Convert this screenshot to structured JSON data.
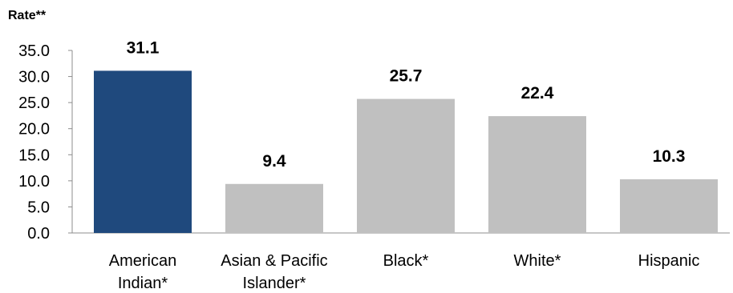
{
  "chart_data": {
    "type": "bar",
    "ylabel": "Rate**",
    "xlabel": "",
    "ylim": [
      0,
      35
    ],
    "yticks": [
      "0.0",
      "5.0",
      "10.0",
      "15.0",
      "20.0",
      "25.0",
      "30.0",
      "35.0"
    ],
    "categories": [
      [
        "American",
        "Indian*"
      ],
      [
        "Asian & Pacific",
        "Islander*"
      ],
      [
        "Black*"
      ],
      [
        "White*"
      ],
      [
        "Hispanic"
      ]
    ],
    "values": [
      31.1,
      9.4,
      25.7,
      22.4,
      10.3
    ],
    "data_labels": [
      "31.1",
      "9.4",
      "25.7",
      "22.4",
      "10.3"
    ],
    "bar_colors": [
      "#1f497d",
      "#c0c0c0",
      "#c0c0c0",
      "#c0c0c0",
      "#c0c0c0"
    ],
    "grid": false,
    "legend": "none"
  }
}
